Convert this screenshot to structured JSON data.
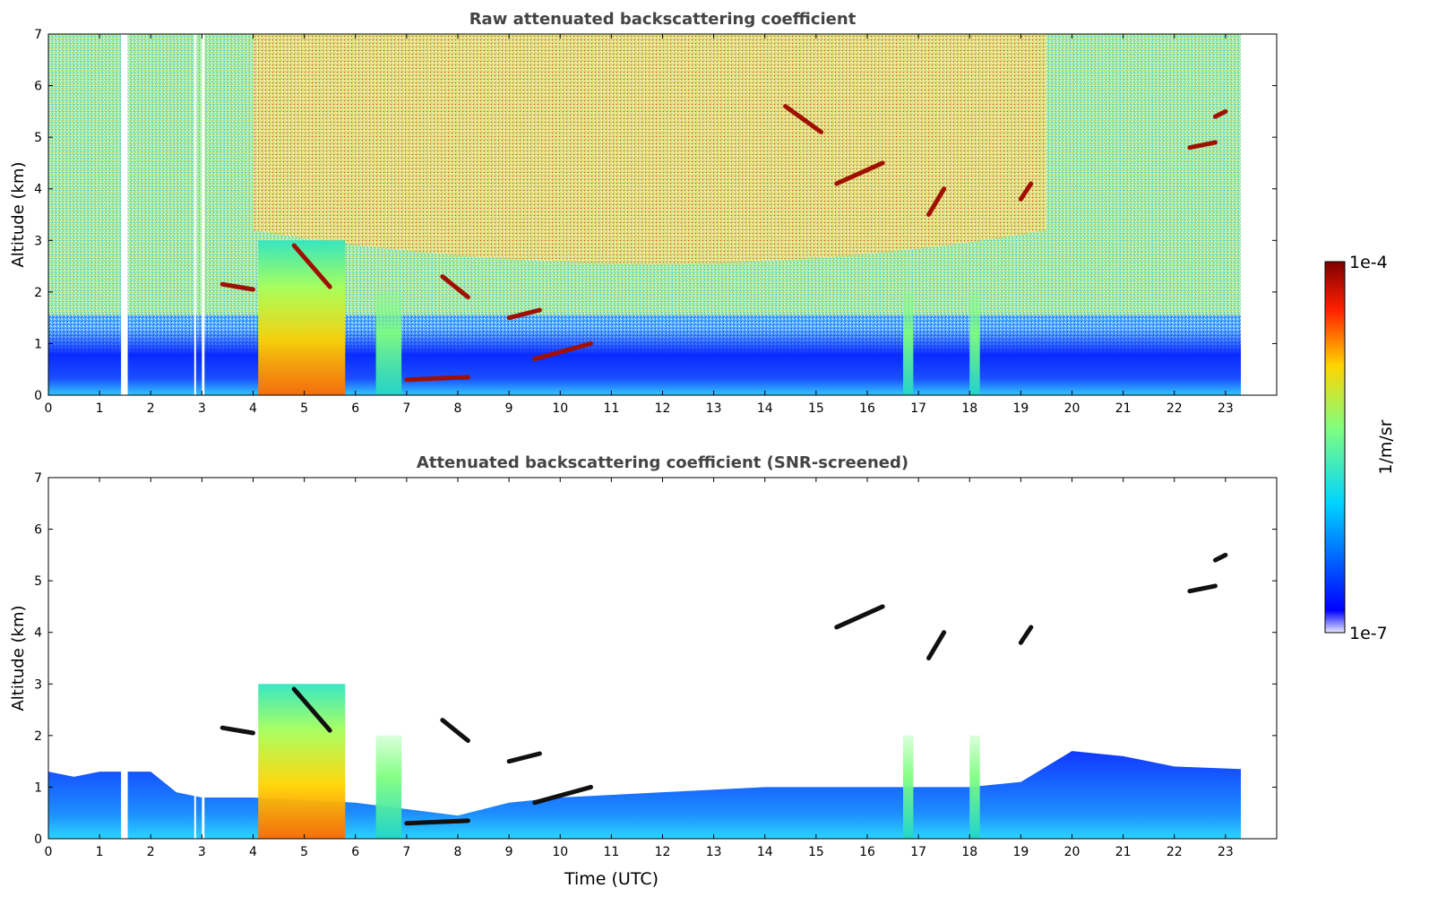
{
  "chart_data": [
    {
      "type": "heatmap",
      "title": "Raw attenuated backscattering coefficient",
      "xlabel": "",
      "ylabel": "Altitude (km)",
      "xlim": [
        0,
        24
      ],
      "ylim": [
        0,
        7
      ],
      "x_ticks": [
        0,
        1,
        2,
        3,
        4,
        5,
        6,
        7,
        8,
        9,
        10,
        11,
        12,
        13,
        14,
        15,
        16,
        17,
        18,
        19,
        20,
        21,
        22,
        23
      ],
      "y_ticks": [
        0,
        1,
        2,
        3,
        4,
        5,
        6,
        7
      ],
      "data_end_hour": 23.3,
      "missing_intervals": [
        [
          1.42,
          1.55
        ],
        [
          2.85,
          2.88
        ],
        [
          3.0,
          3.05
        ]
      ],
      "background": "noisy molecular signal rising with altitude (red aloft midday, blue/green at night)",
      "aerosol_layer_top_km": 1.3,
      "precipitation_columns_utc": [
        [
          4.1,
          5.8
        ],
        [
          6.4,
          6.9
        ],
        [
          16.7,
          16.9
        ],
        [
          18.0,
          18.2
        ]
      ],
      "cloud_segments": [
        {
          "x": [
            3.4,
            4.0
          ],
          "y": [
            2.15,
            2.05
          ]
        },
        {
          "x": [
            4.8,
            5.5
          ],
          "y": [
            2.9,
            2.1
          ]
        },
        {
          "x": [
            7.7,
            8.2
          ],
          "y": [
            2.3,
            1.9
          ]
        },
        {
          "x": [
            7.0,
            8.2
          ],
          "y": [
            0.3,
            0.35
          ]
        },
        {
          "x": [
            9.0,
            9.6
          ],
          "y": [
            1.5,
            1.65
          ]
        },
        {
          "x": [
            9.5,
            10.6
          ],
          "y": [
            0.7,
            1.0
          ]
        },
        {
          "x": [
            14.4,
            15.1
          ],
          "y": [
            5.6,
            5.1
          ]
        },
        {
          "x": [
            15.4,
            16.3
          ],
          "y": [
            4.1,
            4.5
          ]
        },
        {
          "x": [
            17.2,
            17.5
          ],
          "y": [
            3.5,
            4.0
          ]
        },
        {
          "x": [
            19.0,
            19.2
          ],
          "y": [
            3.8,
            4.1
          ]
        },
        {
          "x": [
            22.3,
            22.8
          ],
          "y": [
            4.8,
            4.9
          ]
        },
        {
          "x": [
            22.8,
            23.0
          ],
          "y": [
            5.4,
            5.5
          ]
        }
      ]
    },
    {
      "type": "heatmap",
      "title": "Attenuated backscattering coefficient (SNR-screened)",
      "xlabel": "Time (UTC)",
      "ylabel": "Altitude (km)",
      "xlim": [
        0,
        24
      ],
      "ylim": [
        0,
        7
      ],
      "x_ticks": [
        0,
        1,
        2,
        3,
        4,
        5,
        6,
        7,
        8,
        9,
        10,
        11,
        12,
        13,
        14,
        15,
        16,
        17,
        18,
        19,
        20,
        21,
        22,
        23
      ],
      "y_ticks": [
        0,
        1,
        2,
        3,
        4,
        5,
        6,
        7
      ],
      "data_end_hour": 23.3,
      "missing_intervals": [
        [
          1.42,
          1.55
        ],
        [
          2.85,
          2.88
        ],
        [
          3.0,
          3.05
        ]
      ],
      "background": "white (masked below SNR threshold)",
      "aerosol_layer_top_profile_km": [
        [
          0,
          1.3
        ],
        [
          0.5,
          1.2
        ],
        [
          1,
          1.3
        ],
        [
          2,
          1.3
        ],
        [
          2.5,
          0.9
        ],
        [
          3,
          0.8
        ],
        [
          4,
          0.8
        ],
        [
          6,
          0.7
        ],
        [
          8,
          0.45
        ],
        [
          9,
          0.7
        ],
        [
          10,
          0.8
        ],
        [
          12,
          0.9
        ],
        [
          14,
          1.0
        ],
        [
          16,
          1.0
        ],
        [
          18,
          1.0
        ],
        [
          19,
          1.1
        ],
        [
          20,
          1.7
        ],
        [
          21,
          1.6
        ],
        [
          22,
          1.4
        ],
        [
          23.3,
          1.35
        ]
      ],
      "precipitation_columns_utc": [
        [
          4.1,
          5.8
        ],
        [
          6.4,
          6.9
        ],
        [
          16.7,
          16.9
        ],
        [
          18.0,
          18.2
        ]
      ],
      "cloud_segments": [
        {
          "x": [
            3.4,
            4.0
          ],
          "y": [
            2.15,
            2.05
          ]
        },
        {
          "x": [
            4.8,
            5.5
          ],
          "y": [
            2.9,
            2.1
          ]
        },
        {
          "x": [
            7.7,
            8.2
          ],
          "y": [
            2.3,
            1.9
          ]
        },
        {
          "x": [
            7.0,
            8.2
          ],
          "y": [
            0.3,
            0.35
          ]
        },
        {
          "x": [
            9.0,
            9.6
          ],
          "y": [
            1.5,
            1.65
          ]
        },
        {
          "x": [
            9.5,
            10.6
          ],
          "y": [
            0.7,
            1.0
          ]
        },
        {
          "x": [
            15.4,
            16.3
          ],
          "y": [
            4.1,
            4.5
          ]
        },
        {
          "x": [
            17.2,
            17.5
          ],
          "y": [
            3.5,
            4.0
          ]
        },
        {
          "x": [
            19.0,
            19.2
          ],
          "y": [
            3.8,
            4.1
          ]
        },
        {
          "x": [
            22.3,
            22.8
          ],
          "y": [
            4.8,
            4.9
          ]
        },
        {
          "x": [
            22.8,
            23.0
          ],
          "y": [
            5.4,
            5.5
          ]
        }
      ]
    }
  ],
  "colorbar": {
    "label": "1/m/sr",
    "max_label": "1e-4",
    "min_label": "1e-7",
    "colormap": [
      "#e8e8ff",
      "#0000ff",
      "#00d4ff",
      "#7fff7f",
      "#ffd400",
      "#ff2000",
      "#800000"
    ]
  }
}
